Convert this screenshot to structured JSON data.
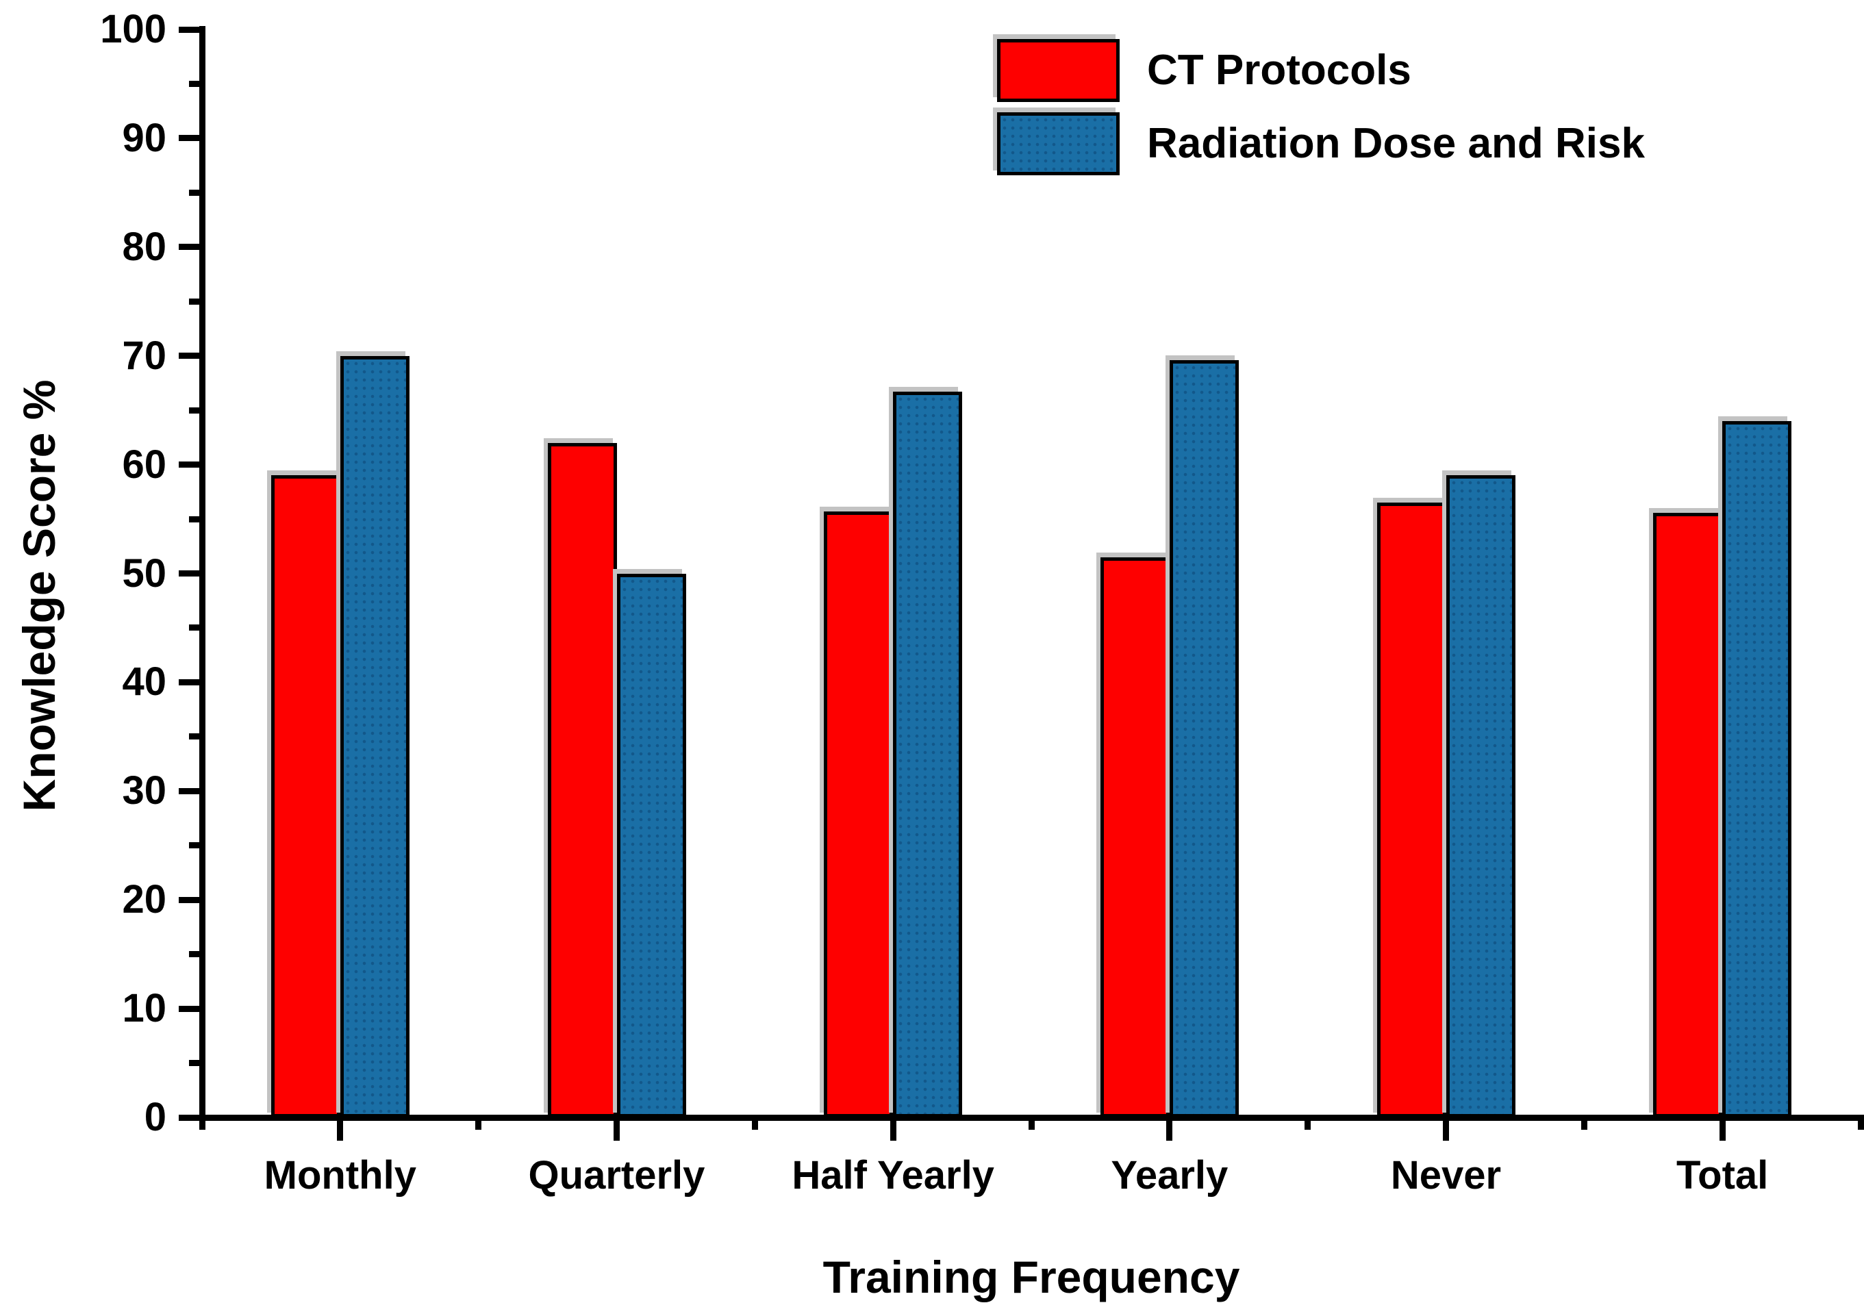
{
  "chart_data": {
    "type": "bar",
    "title": "",
    "xlabel": "Training Frequency",
    "ylabel": "Knowledge Score %",
    "categories": [
      "Monthly",
      "Quarterly",
      "Half Yearly",
      "Yearly",
      "Never",
      "Total"
    ],
    "series": [
      {
        "name": "CT Protocols",
        "color": "#fe0000",
        "texture": "solid",
        "values": [
          59.0,
          62.0,
          55.7,
          51.5,
          56.5,
          55.6
        ]
      },
      {
        "name": "Radiation Dose and Risk",
        "color": "#1a6fa6",
        "texture": "dots",
        "values": [
          70.0,
          50.0,
          66.7,
          69.6,
          59.0,
          64.0
        ]
      }
    ],
    "ylim": [
      0,
      100
    ],
    "y_major_step": 10,
    "y_minor_step": 5,
    "grid": "off",
    "legend_position": "top-right-inside"
  }
}
